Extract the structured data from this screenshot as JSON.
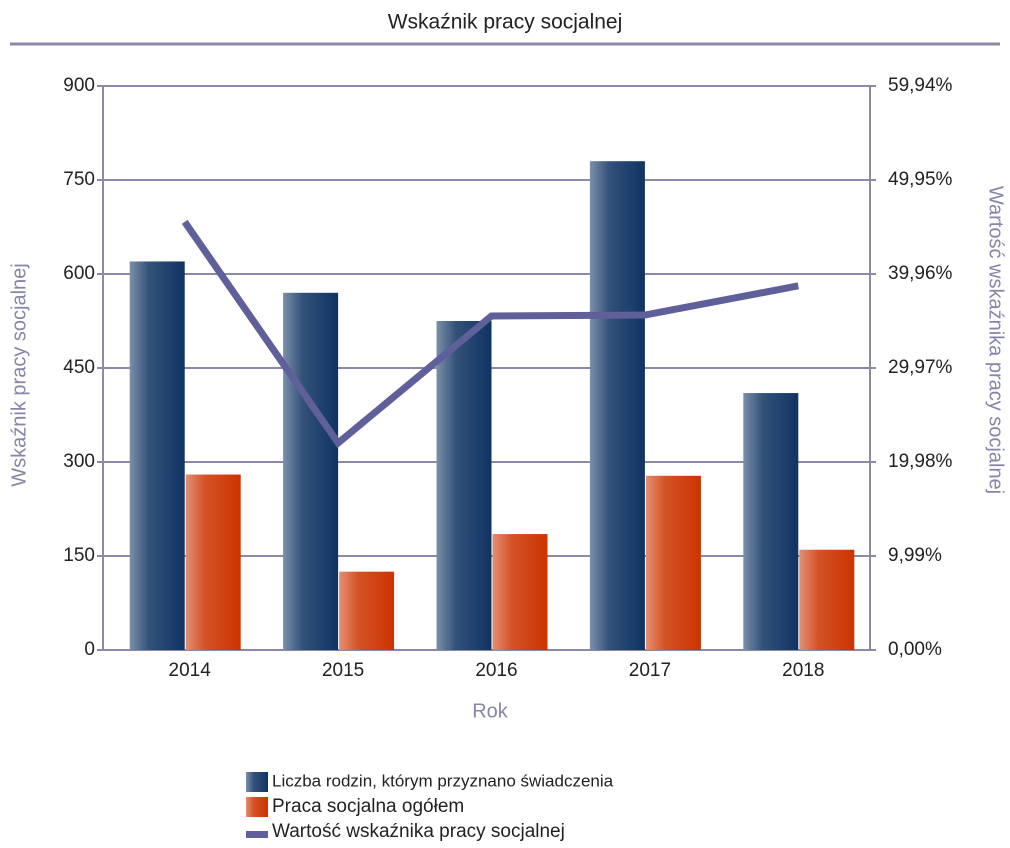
{
  "chart_data": {
    "type": "bar",
    "title": "Wskaźnik pracy socjalnej",
    "x_label": "Rok",
    "y_label": "Wskaźnik pracy socjalnej",
    "y2_label": "Wartość wskaźnika pracy socjalnej",
    "categories": [
      "2014",
      "2015",
      "2016",
      "2017",
      "2018"
    ],
    "series": [
      {
        "name": "Liczba rodzin, którym przyznano świadczenia",
        "type": "bar",
        "color": "#0f3363",
        "values": [
          620,
          570,
          525,
          780,
          410
        ]
      },
      {
        "name": "Praca socjalna ogółem",
        "type": "bar",
        "color": "#cc3300",
        "values": [
          280,
          125,
          185,
          278,
          160
        ]
      },
      {
        "name": "Wartość wskaźnika pracy socjalnej",
        "type": "line",
        "axis": "y2",
        "color": "#5f5f9a",
        "values": [
          45.5,
          22.0,
          35.5,
          35.6,
          38.7
        ]
      }
    ],
    "ylim": [
      0,
      900
    ],
    "yticks": [
      0,
      150,
      300,
      450,
      600,
      750,
      900
    ],
    "y2lim": [
      0,
      59.94
    ],
    "y2ticks": [
      {
        "value": 0,
        "label": "0,00%"
      },
      {
        "value": 9.99,
        "label": "9,99%"
      },
      {
        "value": 19.98,
        "label": "19,98%"
      },
      {
        "value": 29.97,
        "label": "29,97%"
      },
      {
        "value": 39.96,
        "label": "39,96%"
      },
      {
        "value": 49.95,
        "label": "49,95%"
      },
      {
        "value": 59.94,
        "label": "59,94%"
      }
    ],
    "grid": true,
    "legend": "bottom"
  }
}
